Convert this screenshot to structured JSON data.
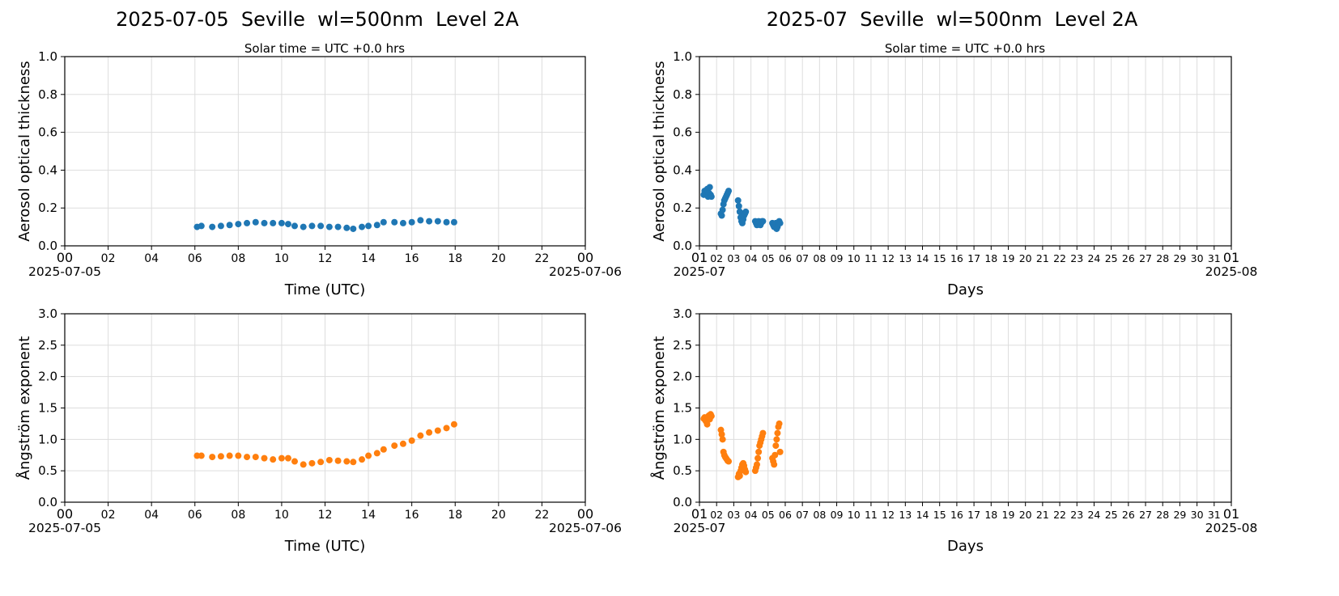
{
  "figure": {
    "left_title": "2025-07-05  Seville  wl=500nm  Level 2A",
    "right_title": "2025-07  Seville  wl=500nm  Level 2A",
    "left_subtitle": "Solar time = UTC +0.0 hrs",
    "right_subtitle": "Solar time = UTC +0.0 hrs"
  },
  "colors": {
    "aod": "#1f77b4",
    "angstrom": "#ff7f0e",
    "grid": "#dddddd"
  },
  "chart_data": [
    {
      "id": "aod_daily",
      "type": "scatter",
      "ylabel": "Aerosol optical thickness",
      "xlabel": "Time (UTC)",
      "xlim": [
        0,
        24
      ],
      "ylim": [
        0,
        1.0
      ],
      "x_ticks": [
        "00",
        "02",
        "04",
        "06",
        "08",
        "10",
        "12",
        "14",
        "16",
        "18",
        "20",
        "22",
        "00"
      ],
      "y_ticks": [
        "0.0",
        "0.2",
        "0.4",
        "0.6",
        "0.8",
        "1.0"
      ],
      "date_left": "2025-07-05",
      "date_right": "2025-07-06",
      "grid": true,
      "series": [
        {
          "x": [
            6.1,
            6.3,
            6.8,
            7.2,
            7.6,
            8.0,
            8.4,
            8.8,
            9.2,
            9.6,
            10.0,
            10.3,
            10.6,
            11.0,
            11.4,
            11.8,
            12.2,
            12.6,
            13.0,
            13.3,
            13.7,
            14.0,
            14.4,
            14.7,
            15.2,
            15.6,
            16.0,
            16.4,
            16.8,
            17.2,
            17.6,
            17.95
          ],
          "y": [
            0.1,
            0.105,
            0.1,
            0.105,
            0.11,
            0.115,
            0.12,
            0.125,
            0.12,
            0.12,
            0.12,
            0.115,
            0.105,
            0.1,
            0.105,
            0.105,
            0.1,
            0.1,
            0.095,
            0.09,
            0.1,
            0.105,
            0.11,
            0.125,
            0.125,
            0.12,
            0.125,
            0.135,
            0.13,
            0.13,
            0.125,
            0.125
          ]
        }
      ]
    },
    {
      "id": "aod_monthly",
      "type": "scatter",
      "ylabel": "Aerosol optical thickness",
      "xlabel": "Days",
      "xlim": [
        1,
        32
      ],
      "ylim": [
        0,
        1.0
      ],
      "x_ticks": [
        "01",
        "02",
        "03",
        "04",
        "05",
        "06",
        "07",
        "08",
        "09",
        "10",
        "11",
        "12",
        "13",
        "14",
        "15",
        "16",
        "17",
        "18",
        "19",
        "20",
        "21",
        "22",
        "23",
        "24",
        "25",
        "26",
        "27",
        "28",
        "29",
        "30",
        "31",
        "01"
      ],
      "y_ticks": [
        "0.0",
        "0.2",
        "0.4",
        "0.6",
        "0.8",
        "1.0"
      ],
      "date_left": "2025-07",
      "date_right": "2025-08",
      "grid": true,
      "series": [
        {
          "x": [
            1.25,
            1.3,
            1.35,
            1.4,
            1.45,
            1.5,
            1.55,
            1.6,
            1.65,
            1.7,
            2.25,
            2.3,
            2.35,
            2.4,
            2.45,
            2.5,
            2.55,
            2.6,
            2.65,
            2.7,
            3.25,
            3.3,
            3.35,
            3.4,
            3.45,
            3.5,
            3.55,
            3.6,
            3.65,
            3.7,
            4.25,
            4.3,
            4.35,
            4.4,
            4.45,
            4.5,
            4.55,
            4.6,
            4.65,
            4.7,
            5.25,
            5.3,
            5.35,
            5.4,
            5.45,
            5.5,
            5.55,
            5.6,
            5.65,
            5.7
          ],
          "y": [
            0.27,
            0.29,
            0.28,
            0.27,
            0.3,
            0.26,
            0.28,
            0.31,
            0.27,
            0.26,
            0.17,
            0.16,
            0.19,
            0.22,
            0.24,
            0.25,
            0.26,
            0.27,
            0.28,
            0.29,
            0.24,
            0.21,
            0.18,
            0.15,
            0.13,
            0.12,
            0.14,
            0.16,
            0.17,
            0.18,
            0.13,
            0.12,
            0.11,
            0.12,
            0.13,
            0.12,
            0.11,
            0.12,
            0.13,
            0.13,
            0.12,
            0.11,
            0.1,
            0.11,
            0.12,
            0.09,
            0.1,
            0.12,
            0.13,
            0.12
          ]
        }
      ]
    },
    {
      "id": "angstrom_daily",
      "type": "scatter",
      "ylabel": "Ångström exponent",
      "xlabel": "Time (UTC)",
      "xlim": [
        0,
        24
      ],
      "ylim": [
        0,
        3.0
      ],
      "x_ticks": [
        "00",
        "02",
        "04",
        "06",
        "08",
        "10",
        "12",
        "14",
        "16",
        "18",
        "20",
        "22",
        "00"
      ],
      "y_ticks": [
        "0.0",
        "0.5",
        "1.0",
        "1.5",
        "2.0",
        "2.5",
        "3.0"
      ],
      "date_left": "2025-07-05",
      "date_right": "2025-07-06",
      "grid": true,
      "series": [
        {
          "x": [
            6.1,
            6.3,
            6.8,
            7.2,
            7.6,
            8.0,
            8.4,
            8.8,
            9.2,
            9.6,
            10.0,
            10.3,
            10.6,
            11.0,
            11.4,
            11.8,
            12.2,
            12.6,
            13.0,
            13.3,
            13.7,
            14.0,
            14.4,
            14.7,
            15.2,
            15.6,
            16.0,
            16.4,
            16.8,
            17.2,
            17.6,
            17.95
          ],
          "y": [
            0.74,
            0.74,
            0.72,
            0.73,
            0.74,
            0.74,
            0.72,
            0.72,
            0.7,
            0.68,
            0.7,
            0.7,
            0.65,
            0.6,
            0.62,
            0.64,
            0.67,
            0.66,
            0.65,
            0.64,
            0.68,
            0.74,
            0.78,
            0.84,
            0.9,
            0.93,
            0.98,
            1.06,
            1.11,
            1.14,
            1.18,
            1.24
          ]
        }
      ]
    },
    {
      "id": "angstrom_monthly",
      "type": "scatter",
      "ylabel": "Ångström exponent",
      "xlabel": "Days",
      "xlim": [
        1,
        32
      ],
      "ylim": [
        0,
        3.0
      ],
      "x_ticks": [
        "01",
        "02",
        "03",
        "04",
        "05",
        "06",
        "07",
        "08",
        "09",
        "10",
        "11",
        "12",
        "13",
        "14",
        "15",
        "16",
        "17",
        "18",
        "19",
        "20",
        "21",
        "22",
        "23",
        "24",
        "25",
        "26",
        "27",
        "28",
        "29",
        "30",
        "31",
        "01"
      ],
      "y_ticks": [
        "0.0",
        "0.5",
        "1.0",
        "1.5",
        "2.0",
        "2.5",
        "3.0"
      ],
      "date_left": "2025-07",
      "date_right": "2025-08",
      "grid": true,
      "series": [
        {
          "x": [
            1.25,
            1.3,
            1.35,
            1.4,
            1.45,
            1.5,
            1.55,
            1.6,
            1.65,
            1.7,
            2.25,
            2.3,
            2.35,
            2.4,
            2.45,
            2.5,
            2.55,
            2.6,
            2.65,
            2.7,
            3.25,
            3.3,
            3.35,
            3.4,
            3.45,
            3.5,
            3.55,
            3.6,
            3.65,
            3.7,
            4.25,
            4.3,
            4.35,
            4.4,
            4.45,
            4.5,
            4.55,
            4.6,
            4.65,
            4.7,
            5.25,
            5.3,
            5.35,
            5.4,
            5.45,
            5.5,
            5.55,
            5.6,
            5.65,
            5.7
          ],
          "y": [
            1.33,
            1.35,
            1.3,
            1.28,
            1.24,
            1.36,
            1.38,
            1.32,
            1.4,
            1.37,
            1.15,
            1.08,
            1.0,
            0.8,
            0.75,
            0.72,
            0.7,
            0.68,
            0.66,
            0.65,
            0.4,
            0.45,
            0.42,
            0.5,
            0.55,
            0.6,
            0.62,
            0.58,
            0.52,
            0.48,
            0.5,
            0.55,
            0.6,
            0.7,
            0.8,
            0.9,
            0.95,
            1.0,
            1.05,
            1.1,
            0.7,
            0.65,
            0.6,
            0.75,
            0.9,
            1.0,
            1.1,
            1.2,
            1.25,
            0.8
          ]
        }
      ]
    }
  ]
}
